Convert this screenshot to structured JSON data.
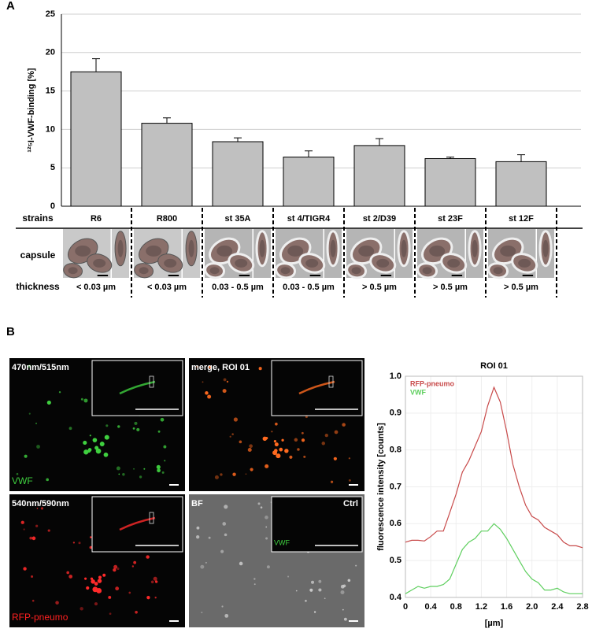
{
  "panel_labels": [
    "A",
    "B"
  ],
  "chart_data": [
    {
      "type": "bar",
      "y_label": "¹²⁵I-VWF-binding [%]",
      "categories": [
        "R6",
        "R800",
        "st 35A",
        "st 4/TIGR4",
        "st 2/D39",
        "st 23F",
        "st 12F"
      ],
      "values": [
        17.5,
        10.8,
        8.4,
        6.4,
        7.9,
        6.2,
        5.8
      ],
      "errors": [
        1.7,
        0.7,
        0.5,
        0.8,
        0.9,
        0.2,
        0.9
      ],
      "color": "#c0c0c0",
      "ylim": [
        0,
        25
      ],
      "yticks": [
        0,
        5,
        10,
        15,
        20,
        25
      ],
      "grid": true
    },
    {
      "type": "line",
      "title": "ROI 01",
      "x_label": "[µm]",
      "y_label": "fluorescence intensity [counts]",
      "x": [
        0,
        0.1,
        0.2,
        0.3,
        0.4,
        0.5,
        0.6,
        0.7,
        0.8,
        0.9,
        1.0,
        1.1,
        1.2,
        1.3,
        1.4,
        1.5,
        1.6,
        1.7,
        1.8,
        1.9,
        2.0,
        2.1,
        2.2,
        2.3,
        2.4,
        2.5,
        2.6,
        2.7,
        2.8
      ],
      "series": [
        {
          "name": "RFP-pneumo",
          "color": "#c84a4a",
          "values": [
            0.55,
            0.555,
            0.555,
            0.553,
            0.565,
            0.58,
            0.58,
            0.63,
            0.68,
            0.74,
            0.77,
            0.81,
            0.85,
            0.92,
            0.97,
            0.93,
            0.85,
            0.76,
            0.7,
            0.65,
            0.62,
            0.61,
            0.59,
            0.58,
            0.57,
            0.55,
            0.54,
            0.54,
            0.535
          ]
        },
        {
          "name": "VWF",
          "color": "#5fcf5f",
          "values": [
            0.41,
            0.42,
            0.43,
            0.425,
            0.43,
            0.43,
            0.435,
            0.45,
            0.49,
            0.53,
            0.55,
            0.56,
            0.58,
            0.58,
            0.6,
            0.585,
            0.56,
            0.53,
            0.5,
            0.47,
            0.45,
            0.44,
            0.42,
            0.42,
            0.425,
            0.415,
            0.41,
            0.41,
            0.41
          ]
        }
      ],
      "xlim": [
        0,
        2.8
      ],
      "xticks": [
        0,
        0.4,
        0.8,
        1.2,
        1.6,
        {
          "value": 2,
          "label": "2.0"
        },
        2.4,
        2.8
      ],
      "ylim": [
        0.4,
        1.0
      ],
      "yticks": [
        0.4,
        0.5,
        0.6,
        0.7,
        0.8,
        0.9,
        {
          "value": 1,
          "label": "1.0"
        }
      ],
      "grid": true,
      "legend": "top-left"
    }
  ],
  "table": {
    "row_labels": [
      "strains",
      "capsule",
      "thickness"
    ],
    "thickness": [
      "< 0.03 µm",
      "< 0.03 µm",
      "0.03 - 0.5 µm",
      "0.03 - 0.5 µm",
      "> 0.5 µm",
      "> 0.5 µm",
      "> 0.5 µm"
    ]
  },
  "micrographs": [
    {
      "label": "470nm/515nm",
      "channel": "VWF"
    },
    {
      "label": "merge, ROI 01"
    },
    {
      "label": "540nm/590nm",
      "channel": "RFP-pneumo"
    },
    {
      "label": "BF",
      "inset_label": "Ctrl",
      "inset_channel": "VWF"
    }
  ]
}
